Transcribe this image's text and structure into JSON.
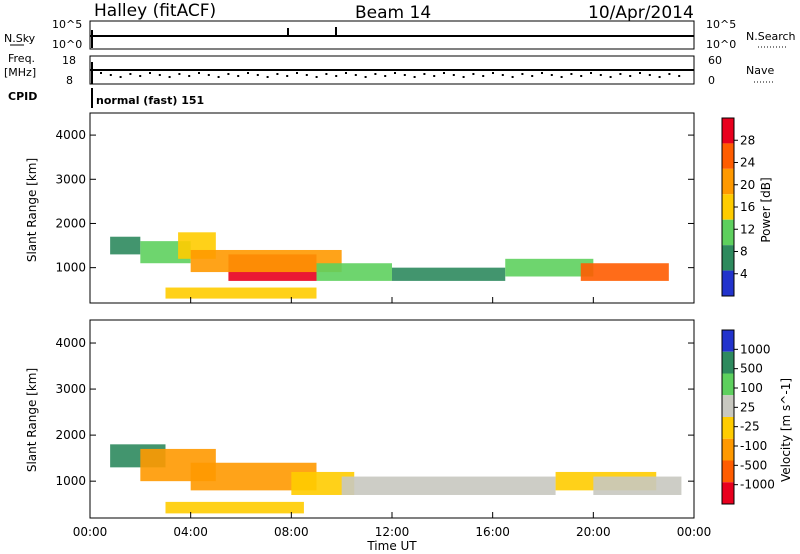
{
  "header": {
    "station": "Halley (fitACF)",
    "beam": "Beam 14",
    "date": "10/Apr/2014"
  },
  "sky_panel": {
    "left_label": "N.Sky",
    "right_label": "N.Search",
    "top_tick": "10^5",
    "bottom_tick": "10^0",
    "top_tick_right": "10^5",
    "bottom_tick_right": "10^0"
  },
  "freq_panel": {
    "left_label_1": "Freq.",
    "left_label_2": "[MHz]",
    "right_label": "Nave",
    "left_top": "18",
    "left_bottom": "8",
    "right_top": "60",
    "right_bottom": "0"
  },
  "cpid": {
    "label": "CPID",
    "text": "normal (fast) 151"
  },
  "x_axis": {
    "label": "Time UT",
    "ticks": [
      "00:00",
      "04:00",
      "08:00",
      "12:00",
      "16:00",
      "20:00",
      "00:00"
    ]
  },
  "chart_data": [
    {
      "type": "heatmap",
      "title": "Power",
      "ylabel": "Slant Range [km]",
      "xlabel": "Time UT",
      "xlim_hours": [
        0,
        24
      ],
      "ylim_km": [
        200,
        4500
      ],
      "y_ticks": [
        "1000",
        "2000",
        "3000",
        "4000"
      ],
      "colorbar": {
        "label": "Power [dB]",
        "ticks": [
          "28",
          "24",
          "20",
          "16",
          "12",
          "8",
          "4"
        ],
        "colors": [
          "#e8001e",
          "#ff5c00",
          "#ff9900",
          "#ffcc00",
          "#5ed05e",
          "#2e8a5e",
          "#2233cc"
        ]
      },
      "bands": [
        {
          "t0": 0.8,
          "t1": 2.0,
          "r0": 1300,
          "r1": 1700,
          "color": "#2e8a5e"
        },
        {
          "t0": 2.0,
          "t1": 4.0,
          "r0": 1100,
          "r1": 1600,
          "color": "#5ed05e"
        },
        {
          "t0": 3.5,
          "t1": 5.0,
          "r0": 1200,
          "r1": 1800,
          "color": "#ffcc00"
        },
        {
          "t0": 5.5,
          "t1": 9.0,
          "r0": 700,
          "r1": 1300,
          "color": "#e8001e"
        },
        {
          "t0": 4.0,
          "t1": 10.0,
          "r0": 900,
          "r1": 1400,
          "color": "#ff9900"
        },
        {
          "t0": 9.0,
          "t1": 12.0,
          "r0": 700,
          "r1": 1100,
          "color": "#5ed05e"
        },
        {
          "t0": 12.0,
          "t1": 16.5,
          "r0": 700,
          "r1": 1000,
          "color": "#2e8a5e"
        },
        {
          "t0": 16.5,
          "t1": 20.0,
          "r0": 800,
          "r1": 1200,
          "color": "#5ed05e"
        },
        {
          "t0": 19.5,
          "t1": 23.0,
          "r0": 700,
          "r1": 1100,
          "color": "#ff5c00"
        },
        {
          "t0": 3.0,
          "t1": 9.0,
          "r0": 300,
          "r1": 550,
          "color": "#ffcc00"
        }
      ]
    },
    {
      "type": "heatmap",
      "title": "Velocity",
      "ylabel": "Slant Range [km]",
      "xlabel": "Time UT",
      "xlim_hours": [
        0,
        24
      ],
      "ylim_km": [
        200,
        4500
      ],
      "y_ticks": [
        "1000",
        "2000",
        "3000",
        "4000"
      ],
      "colorbar": {
        "label": "Velocity [m s^-1]",
        "ticks": [
          "1000",
          "500",
          "100",
          "25",
          "-25",
          "-100",
          "-500",
          "-1000"
        ],
        "colors": [
          "#2233cc",
          "#2e8a5e",
          "#5ed05e",
          "#c8c8c0",
          "#ffcc00",
          "#ff9900",
          "#ff5c00",
          "#e8001e"
        ]
      },
      "bands": [
        {
          "t0": 0.8,
          "t1": 3.0,
          "r0": 1300,
          "r1": 1800,
          "color": "#2e8a5e"
        },
        {
          "t0": 2.0,
          "t1": 5.0,
          "r0": 1000,
          "r1": 1700,
          "color": "#ff9900"
        },
        {
          "t0": 4.0,
          "t1": 9.0,
          "r0": 800,
          "r1": 1400,
          "color": "#ff9900"
        },
        {
          "t0": 8.0,
          "t1": 10.5,
          "r0": 700,
          "r1": 1200,
          "color": "#ffcc00"
        },
        {
          "t0": 10.0,
          "t1": 18.5,
          "r0": 700,
          "r1": 1100,
          "color": "#c8c8c0"
        },
        {
          "t0": 18.5,
          "t1": 22.5,
          "r0": 800,
          "r1": 1200,
          "color": "#ffcc00"
        },
        {
          "t0": 20.0,
          "t1": 23.5,
          "r0": 700,
          "r1": 1100,
          "color": "#c8c8c0"
        },
        {
          "t0": 3.0,
          "t1": 8.5,
          "r0": 300,
          "r1": 550,
          "color": "#ffcc00"
        }
      ]
    }
  ]
}
